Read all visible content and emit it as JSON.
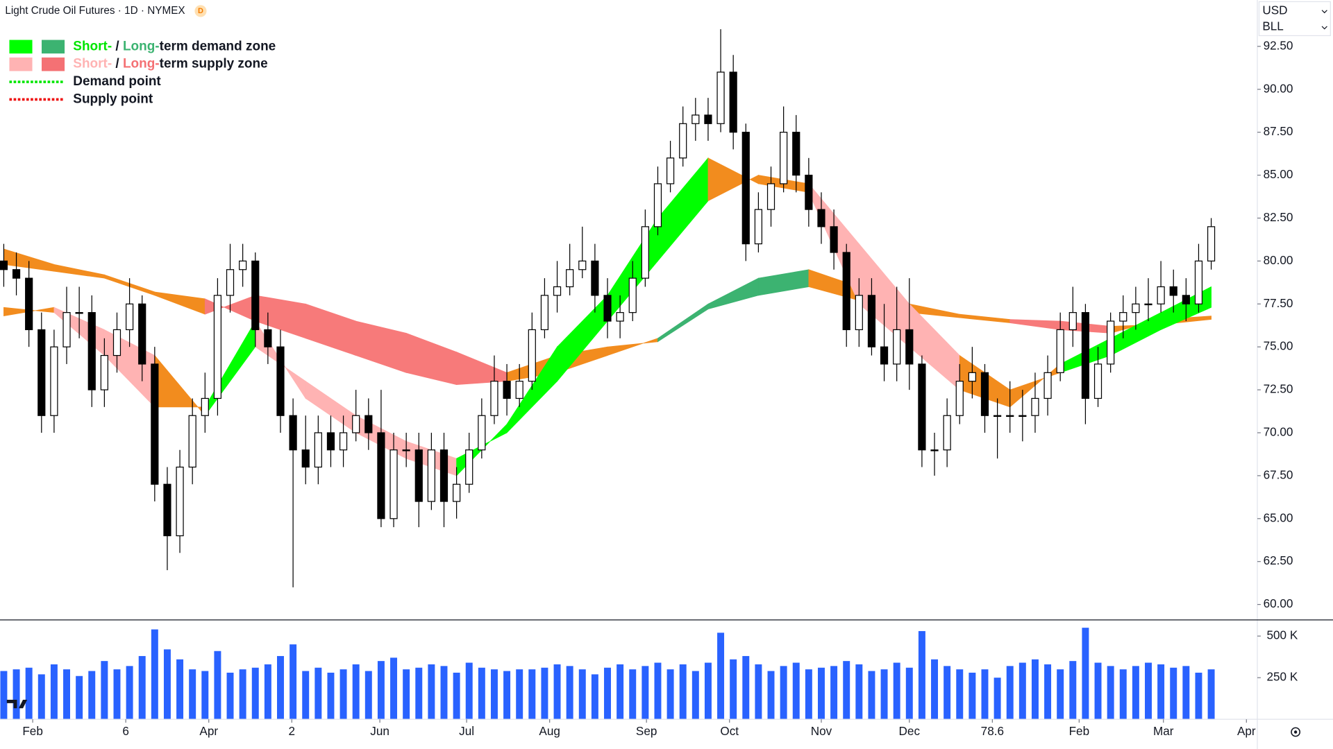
{
  "header": {
    "title": "Light Crude Oil Futures · 1D · NYMEX",
    "badge": "D",
    "currency": "USD",
    "unit": "BLL"
  },
  "chart_data": {
    "type": "candlestick",
    "xlim": [
      -0.3,
      99.6
    ],
    "xticks": [
      {
        "value": 2.3,
        "label": "Feb"
      },
      {
        "value": 9.7,
        "label": "6"
      },
      {
        "value": 16.3,
        "label": "Apr"
      },
      {
        "value": 22.9,
        "label": "2"
      },
      {
        "value": 29.9,
        "label": "Jun"
      },
      {
        "value": 36.8,
        "label": "Jul"
      },
      {
        "value": 43.4,
        "label": "Aug"
      },
      {
        "value": 51.1,
        "label": "Sep"
      },
      {
        "value": 57.7,
        "label": "Oct"
      },
      {
        "value": 65,
        "label": "Nov"
      },
      {
        "value": 72,
        "label": "Dec"
      },
      78.6,
      {
        "value": 85.5,
        "label": "Feb"
      },
      {
        "value": 92.2,
        "label": "Mar"
      },
      {
        "value": 98.8,
        "label": "Apr"
      }
    ],
    "ylim": [
      59.1,
      95.2
    ],
    "yticks": [
      {
        "value": 60,
        "label": "60.00"
      },
      {
        "value": 62.5,
        "label": "62.50"
      },
      {
        "value": 65,
        "label": "65.00"
      },
      {
        "value": 67.5,
        "label": "67.50"
      },
      {
        "value": 70,
        "label": "70.00"
      },
      {
        "value": 72.5,
        "label": "72.50"
      },
      {
        "value": 75,
        "label": "75.00"
      },
      {
        "value": 77.5,
        "label": "77.50"
      },
      {
        "value": 80,
        "label": "80.00"
      },
      {
        "value": 82.5,
        "label": "82.50"
      },
      {
        "value": 85,
        "label": "85.00"
      },
      {
        "value": 87.5,
        "label": "87.50"
      },
      {
        "value": 90,
        "label": "90.00"
      },
      {
        "value": 92.5,
        "label": "92.50"
      }
    ],
    "up_color": "#ffffff",
    "down_color": "#000000",
    "open": [
      80,
      79.5,
      79,
      76,
      71,
      75,
      77,
      77,
      72.5,
      74.5,
      76,
      77.5,
      74,
      67,
      64,
      68,
      71,
      72,
      78,
      79.5,
      80,
      76,
      75,
      71,
      69,
      68,
      70,
      69,
      70,
      71,
      70,
      65,
      69,
      69,
      66,
      69,
      66,
      67,
      69,
      71,
      73,
      72,
      73,
      76,
      78,
      78.5,
      79.5,
      80,
      78,
      76.5,
      77,
      79,
      82,
      84.5,
      86,
      88,
      88.5,
      88,
      91,
      87.5,
      81,
      83,
      84.5,
      87.5,
      85,
      83,
      82,
      80.5,
      76,
      78,
      75,
      74,
      76,
      74,
      69,
      69,
      71,
      73,
      73.5,
      71,
      71,
      71,
      71,
      72,
      73.5,
      76,
      77,
      72,
      74,
      76.5,
      77,
      77.5,
      77.5,
      78.5,
      78,
      77.5,
      80
    ],
    "high": [
      81,
      80.5,
      80,
      77,
      76,
      78.5,
      78.5,
      78,
      75.5,
      77,
      79,
      78,
      75,
      68,
      69,
      72,
      73.5,
      79,
      81,
      81,
      80.5,
      77,
      76,
      72,
      71,
      71,
      71,
      71,
      72.5,
      72,
      72.5,
      70,
      70,
      70,
      70,
      70,
      68,
      70,
      72,
      74.5,
      74,
      74,
      77,
      79,
      80,
      81,
      82,
      81,
      79,
      78,
      80,
      83,
      85.5,
      87,
      89,
      89.5,
      89.5,
      93.5,
      92,
      88,
      84,
      85.5,
      89,
      88.5,
      86,
      84,
      83,
      81,
      79,
      79,
      77.5,
      78.5,
      79,
      74.5,
      70,
      72,
      74,
      75,
      74,
      72,
      73,
      72.5,
      73.5,
      74.5,
      77,
      78.5,
      77.5,
      75,
      77,
      78,
      78.5,
      79,
      80,
      79.5,
      79,
      81,
      82.5
    ],
    "low": [
      78.5,
      78,
      75,
      70,
      70,
      74,
      75.5,
      71.5,
      71.5,
      73.5,
      75,
      73,
      66,
      62,
      63,
      67,
      70,
      71,
      77,
      78.5,
      75,
      74,
      70,
      61,
      67,
      67,
      68,
      68,
      69.5,
      69,
      64.5,
      64.5,
      68,
      64.5,
      65.5,
      64.5,
      65,
      66.5,
      68.5,
      70.5,
      71,
      71.5,
      72.5,
      75.5,
      77,
      78,
      79,
      77,
      75.5,
      75.5,
      76.5,
      78.5,
      81.5,
      84,
      85.5,
      87,
      87,
      87.5,
      86.5,
      80,
      80.5,
      82,
      84,
      84,
      82,
      81,
      79.5,
      75,
      75,
      74.5,
      73,
      73,
      72.5,
      68,
      67.5,
      68,
      70.5,
      72,
      70,
      68.5,
      70,
      69.5,
      70,
      71,
      73,
      75,
      70.5,
      71.5,
      73.5,
      75.5,
      76,
      76.5,
      77,
      77,
      76.5,
      77,
      79.5
    ],
    "close": [
      79.5,
      79,
      76,
      71,
      75,
      77,
      77,
      72.5,
      74.5,
      76,
      77.5,
      74,
      67,
      64,
      68,
      71,
      72,
      78,
      79.5,
      80,
      76,
      75,
      71,
      69,
      68,
      70,
      69,
      70,
      71,
      70,
      65,
      69,
      69,
      66,
      69,
      66,
      67,
      69,
      71,
      73,
      72,
      73,
      76,
      78,
      78.5,
      79.5,
      80,
      78,
      76.5,
      77,
      79,
      82,
      84.5,
      86,
      88,
      88.5,
      88,
      91,
      87.5,
      81,
      83,
      84.5,
      87.5,
      85,
      83,
      82,
      80.5,
      76,
      78,
      75,
      74,
      76,
      74,
      69,
      69,
      71,
      73,
      73.5,
      71,
      71,
      71,
      71,
      72,
      73.5,
      76,
      77,
      72,
      74,
      76.5,
      77,
      77.5,
      77.5,
      78.5,
      78,
      77.5,
      80,
      82
    ],
    "bands": [
      {
        "x": [
          0,
          4,
          8,
          12,
          16,
          20,
          24,
          28,
          32,
          36,
          40,
          44,
          48,
          52,
          56,
          60,
          64,
          68,
          72,
          76,
          80,
          84,
          88,
          92,
          96
        ],
        "fast": [
          80.7,
          79.8,
          79.2,
          78.2,
          77.8,
          76.5,
          75.5,
          74.5,
          73.5,
          72.8,
          73,
          73.5,
          74.5,
          75.5,
          77.5,
          79,
          79.5,
          78.5,
          77.5,
          76.9,
          76.6,
          76.5,
          76.2,
          76.3,
          76.6
        ],
        "slow": [
          79.8,
          79.4,
          79,
          78,
          76.9,
          78,
          77.5,
          76.5,
          75.8,
          74.7,
          73.5,
          74.5,
          75,
          75.3,
          77.2,
          78,
          78.5,
          77.7,
          77,
          76.7,
          76.4,
          76,
          75.8,
          76.6,
          76.8
        ],
        "colors": [
          "#f28c1e",
          "#f28c1e",
          "#f28c1e",
          "#f28c1e",
          "#f77a7a",
          "#f77a7a",
          "#f77a7a",
          "#f77a7a",
          "#f77a7a",
          "#f77a7a",
          "#f28c1e",
          "#f28c1e",
          "#f28c1e",
          "#3cb371",
          "#3cb371",
          "#3cb371",
          "#f28c1e",
          "#f28c1e",
          "#f28c1e",
          "#f28c1e",
          "#f77a7a",
          "#f77a7a",
          "#f28c1e",
          "#f28c1e"
        ]
      },
      {
        "x": [
          0,
          4,
          8,
          12,
          16,
          20,
          24,
          28,
          32,
          36,
          40,
          44,
          48,
          52,
          56,
          60,
          64,
          68,
          72,
          76,
          80,
          84,
          88,
          92,
          96
        ],
        "fast": [
          77.3,
          77,
          74.5,
          71.5,
          71.5,
          76.5,
          72,
          70,
          68.5,
          67.5,
          70.5,
          75,
          78,
          82.5,
          86,
          84.5,
          84,
          77.5,
          75,
          72.5,
          71.5,
          74,
          75.5,
          77,
          78.5
        ],
        "slow": [
          76.8,
          77.3,
          76,
          74.5,
          71,
          75,
          73,
          71,
          69.5,
          68.5,
          70,
          73,
          76.5,
          80,
          83.5,
          85,
          84.5,
          81,
          77.5,
          74.5,
          72.5,
          73.5,
          74.5,
          76,
          77.3
        ],
        "colors": [
          "#f28c1e",
          "#ffb3b3",
          "#ffb3b3",
          "#f28c1e",
          "#00ff00",
          "#ffb3b3",
          "#ffb3b3",
          "#ffb3b3",
          "#ffb3b3",
          "#00ff00",
          "#00ff00",
          "#00ff00",
          "#00ff00",
          "#00ff00",
          "#f28c1e",
          "#f28c1e",
          "#ffb3b3",
          "#ffb3b3",
          "#ffb3b3",
          "#f28c1e",
          "#f28c1e",
          "#00ff00",
          "#00ff00",
          "#00ff00"
        ]
      }
    ],
    "volume": {
      "color": "#2962ff",
      "ylim": [
        0,
        597000
      ],
      "yticks": [
        {
          "value": 250000,
          "label": "250 K"
        },
        {
          "value": 500000,
          "label": "500 K"
        }
      ],
      "values": [
        290000,
        300000,
        310000,
        270000,
        330000,
        300000,
        260000,
        290000,
        350000,
        300000,
        320000,
        380000,
        540000,
        420000,
        360000,
        300000,
        290000,
        410000,
        280000,
        300000,
        310000,
        330000,
        380000,
        450000,
        290000,
        310000,
        280000,
        300000,
        330000,
        290000,
        350000,
        370000,
        300000,
        310000,
        330000,
        320000,
        280000,
        340000,
        310000,
        300000,
        290000,
        300000,
        300000,
        310000,
        330000,
        320000,
        300000,
        270000,
        310000,
        330000,
        300000,
        320000,
        340000,
        300000,
        330000,
        290000,
        340000,
        520000,
        360000,
        380000,
        330000,
        290000,
        320000,
        340000,
        300000,
        310000,
        320000,
        350000,
        330000,
        290000,
        300000,
        340000,
        310000,
        530000,
        360000,
        320000,
        300000,
        280000,
        300000,
        250000,
        320000,
        340000,
        360000,
        330000,
        300000,
        350000,
        550000,
        340000,
        320000,
        300000,
        320000,
        340000,
        330000,
        310000,
        320000,
        280000,
        300000
      ]
    },
    "legend": [
      {
        "swatches": [
          "#00ff00",
          "#3cb371"
        ],
        "parts": [
          {
            "text": "Short-",
            "color": "#00e600"
          },
          {
            "text": " / ",
            "color": "#131722"
          },
          {
            "text": "Long-",
            "color": "#3cb371"
          },
          {
            "text": "term demand zone",
            "color": "#131722"
          }
        ]
      },
      {
        "swatches": [
          "#ffb3b3",
          "#f47174"
        ],
        "parts": [
          {
            "text": "Short-",
            "color": "#ffb3b3"
          },
          {
            "text": " / ",
            "color": "#131722"
          },
          {
            "text": "Long-",
            "color": "#f47174"
          },
          {
            "text": "term supply zone",
            "color": "#131722"
          }
        ]
      },
      {
        "line": "#00e600",
        "parts": [
          {
            "text": "Demand point",
            "color": "#131722"
          }
        ]
      },
      {
        "line": "#ee1111",
        "parts": [
          {
            "text": "Supply point",
            "color": "#131722"
          }
        ]
      }
    ]
  }
}
